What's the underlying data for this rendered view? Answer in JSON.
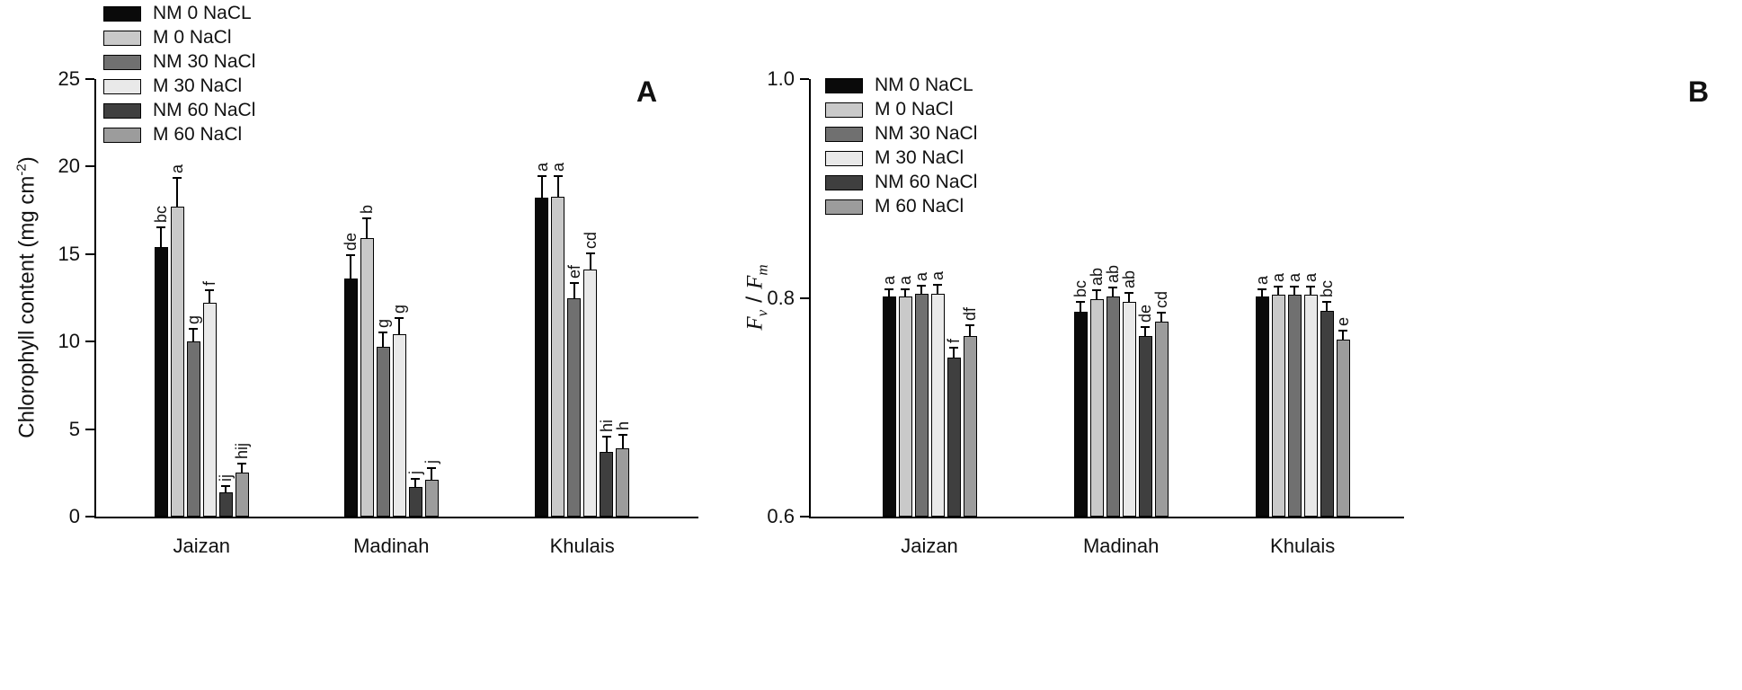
{
  "figure": {
    "background": "#ffffff",
    "panel_a_letter": "A",
    "panel_b_letter": "B"
  },
  "chart_data": [
    {
      "type": "bar",
      "panel_label": "A",
      "title": "",
      "xlabel": "",
      "ylabel": "Chlorophyll content (mg cm-2)",
      "ylabel_parts": {
        "prefix": "Chlorophyll content (mg cm",
        "sup": "-2",
        "suffix": ")"
      },
      "ylim": [
        0,
        25
      ],
      "yticks": [
        0,
        5,
        10,
        15,
        20,
        25
      ],
      "ytick_labels": [
        "0",
        "5",
        "10",
        "15",
        "20",
        "25"
      ],
      "legend_position": "top-left",
      "grid": false,
      "categories": [
        "Jaizan",
        "Madinah",
        "Khulais"
      ],
      "series": [
        {
          "name": "NM 0 NaCL",
          "color": "#0a0a0a",
          "values": [
            15.4,
            13.6,
            18.2
          ],
          "errors": [
            1.2,
            1.4,
            1.3
          ],
          "letters": [
            "bc",
            "de",
            "a"
          ]
        },
        {
          "name": "M 0 NaCl",
          "color": "#c9c9c9",
          "values": [
            17.7,
            15.9,
            18.3
          ],
          "errors": [
            1.7,
            1.2,
            1.2
          ],
          "letters": [
            "a",
            "b",
            "a"
          ]
        },
        {
          "name": "NM 30 NaCl",
          "color": "#707070",
          "values": [
            10.0,
            9.7,
            12.5
          ],
          "errors": [
            0.8,
            0.9,
            0.9
          ],
          "letters": [
            "g",
            "g",
            "ef"
          ]
        },
        {
          "name": "M 30 NaCl",
          "color": "#e9e9e9",
          "values": [
            12.2,
            10.4,
            14.1
          ],
          "errors": [
            0.8,
            1.0,
            1.0
          ],
          "letters": [
            "f",
            "g",
            "cd"
          ]
        },
        {
          "name": "NM 60 NaCl",
          "color": "#3f3f3f",
          "values": [
            1.4,
            1.7,
            3.7
          ],
          "errors": [
            0.4,
            0.5,
            0.9
          ],
          "letters": [
            "ij",
            "j",
            "hi"
          ]
        },
        {
          "name": "M 60 NaCl",
          "color": "#9c9c9c",
          "values": [
            2.5,
            2.1,
            3.9
          ],
          "errors": [
            0.6,
            0.7,
            0.8
          ],
          "letters": [
            "hij",
            "j",
            "h"
          ]
        }
      ]
    },
    {
      "type": "bar",
      "panel_label": "B",
      "title": "",
      "xlabel": "",
      "ylabel": "Fv / Fm",
      "ylabel_parts": {
        "f1": "F",
        "sub1": "v",
        "sep": "/",
        "f2": "F",
        "sub2": "m"
      },
      "ylim": [
        0.6,
        1.0
      ],
      "yticks": [
        0.6,
        0.8,
        1.0
      ],
      "ytick_labels": [
        "0.6",
        "0.8",
        "1.0"
      ],
      "legend_position": "top-left",
      "grid": false,
      "categories": [
        "Jaizan",
        "Madinah",
        "Khulais"
      ],
      "series": [
        {
          "name": "NM 0 NaCL",
          "color": "#0a0a0a",
          "values": [
            0.801,
            0.787,
            0.801
          ],
          "errors": [
            0.008,
            0.01,
            0.008
          ],
          "letters": [
            "a",
            "bc",
            "a"
          ]
        },
        {
          "name": "M 0 NaCl",
          "color": "#c9c9c9",
          "values": [
            0.801,
            0.799,
            0.803
          ],
          "errors": [
            0.008,
            0.009,
            0.008
          ],
          "letters": [
            "a",
            "ab",
            "a"
          ]
        },
        {
          "name": "NM 30 NaCl",
          "color": "#707070",
          "values": [
            0.804,
            0.801,
            0.803
          ],
          "errors": [
            0.008,
            0.009,
            0.008
          ],
          "letters": [
            "a",
            "ab",
            "a"
          ]
        },
        {
          "name": "M 30 NaCl",
          "color": "#e9e9e9",
          "values": [
            0.804,
            0.796,
            0.803
          ],
          "errors": [
            0.009,
            0.009,
            0.008
          ],
          "letters": [
            "a",
            "ab",
            "a"
          ]
        },
        {
          "name": "NM 60 NaCl",
          "color": "#3f3f3f",
          "values": [
            0.745,
            0.765,
            0.788
          ],
          "errors": [
            0.01,
            0.009,
            0.009
          ],
          "letters": [
            "f",
            "de",
            "bc"
          ]
        },
        {
          "name": "M 60 NaCl",
          "color": "#9c9c9c",
          "values": [
            0.765,
            0.778,
            0.762
          ],
          "errors": [
            0.011,
            0.009,
            0.009
          ],
          "letters": [
            "df",
            "cd",
            "e"
          ]
        }
      ]
    }
  ]
}
